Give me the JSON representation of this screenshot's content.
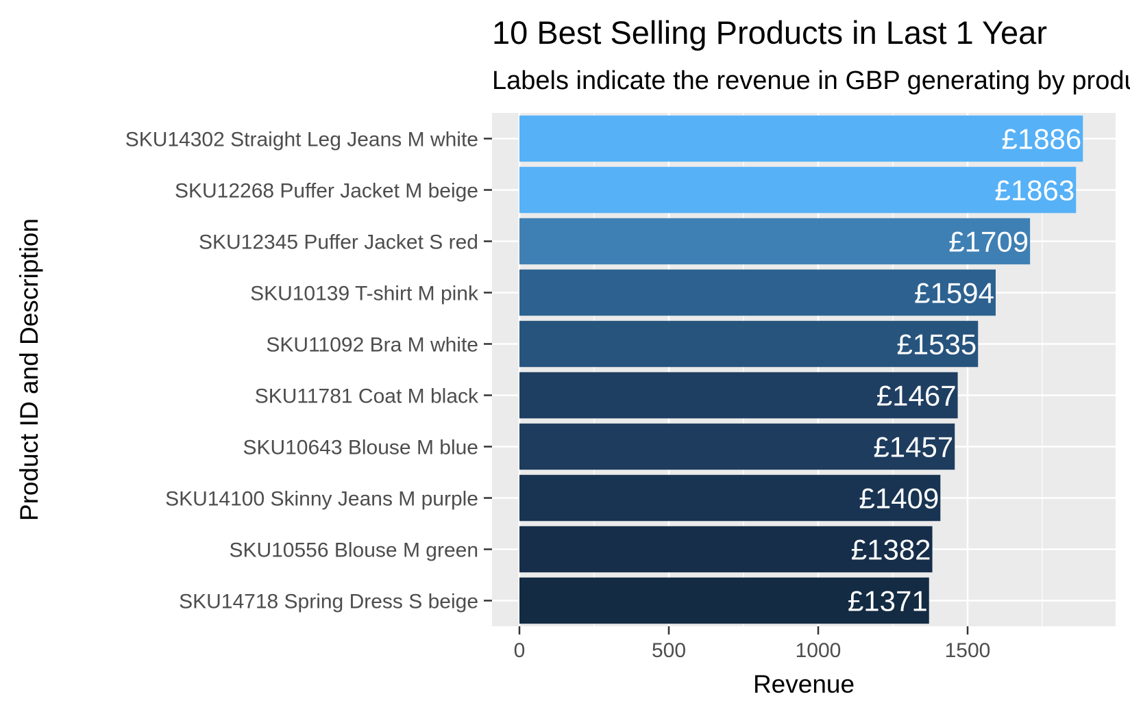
{
  "chart_data": {
    "type": "bar",
    "orientation": "horizontal",
    "title": "10 Best Selling Products in Last 1 Year",
    "subtitle": "Labels indicate the revenue in GBP generating by products",
    "xlabel": "Revenue",
    "ylabel": "Product ID and Description",
    "xlim": [
      0,
      2000
    ],
    "xticks": [
      0,
      500,
      1000,
      1500
    ],
    "x_tick_labels": [
      "0",
      "500",
      "1000",
      "1500"
    ],
    "grid": true,
    "background": "#ebebeb",
    "categories": [
      "SKU14302 Straight Leg Jeans M white",
      "SKU12268 Puffer Jacket M beige",
      "SKU12345 Puffer Jacket S red",
      "SKU10139 T-shirt M pink",
      "SKU11092 Bra M white",
      "SKU11781 Coat M black",
      "SKU10643 Blouse M blue",
      "SKU14100 Skinny Jeans M purple",
      "SKU10556 Blouse M green",
      "SKU14718 Spring Dress S beige"
    ],
    "values": [
      1886,
      1863,
      1709,
      1594,
      1535,
      1467,
      1457,
      1409,
      1382,
      1371
    ],
    "labels": [
      "£1886",
      "£1863",
      "£1709",
      "£1594",
      "£1535",
      "£1467",
      "£1457",
      "£1409",
      "£1382",
      "£1371"
    ],
    "colors": [
      "#56b1f7",
      "#56b1f7",
      "#3f80b4",
      "#2d6290",
      "#27547d",
      "#1f3f62",
      "#1d3c5e",
      "#193452",
      "#162e49",
      "#132b43"
    ]
  }
}
